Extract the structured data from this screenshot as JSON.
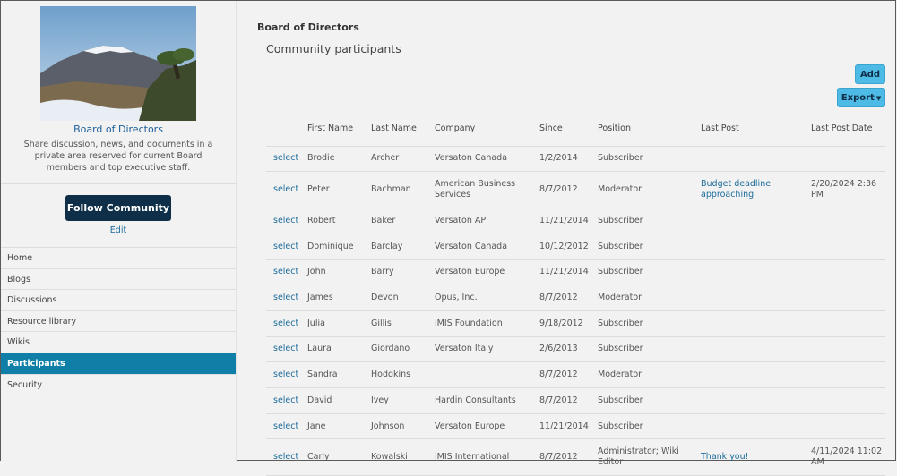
{
  "community": {
    "name": "Board of Directors",
    "description": "Share discussion, news, and documents in a private area reserved for current Board members and top executive staff.",
    "follow_label": "Follow Community",
    "edit_label": "Edit"
  },
  "nav": {
    "items": [
      {
        "label": "Home"
      },
      {
        "label": "Blogs"
      },
      {
        "label": "Discussions"
      },
      {
        "label": "Resource library"
      },
      {
        "label": "Wikis"
      },
      {
        "label": "Participants"
      },
      {
        "label": "Security"
      }
    ],
    "active": "Participants"
  },
  "main": {
    "page_title": "Board of Directors",
    "section_title": "Community participants",
    "add_label": "Add",
    "export_label": "Export"
  },
  "table": {
    "headers": {
      "first_name": "First Name",
      "last_name": "Last Name",
      "company": "Company",
      "since": "Since",
      "position": "Position",
      "last_post": "Last Post",
      "last_post_date": "Last Post Date"
    },
    "select_label": "select",
    "rows": [
      {
        "first": "Brodie",
        "last": "Archer",
        "company": "Versaton Canada",
        "since": "1/2/2014",
        "position": "Subscriber",
        "last_post": "",
        "last_post_date": ""
      },
      {
        "first": "Peter",
        "last": "Bachman",
        "company": "American Business Services",
        "since": "8/7/2012",
        "position": "Moderator",
        "last_post": "Budget deadline approaching",
        "last_post_date": "2/20/2024 2:36 PM"
      },
      {
        "first": "Robert",
        "last": "Baker",
        "company": "Versaton AP",
        "since": "11/21/2014",
        "position": "Subscriber",
        "last_post": "",
        "last_post_date": ""
      },
      {
        "first": "Dominique",
        "last": "Barclay",
        "company": "Versaton Canada",
        "since": "10/12/2012",
        "position": "Subscriber",
        "last_post": "",
        "last_post_date": ""
      },
      {
        "first": "John",
        "last": "Barry",
        "company": "Versaton Europe",
        "since": "11/21/2014",
        "position": "Subscriber",
        "last_post": "",
        "last_post_date": ""
      },
      {
        "first": "James",
        "last": "Devon",
        "company": "Opus, Inc.",
        "since": "8/7/2012",
        "position": "Moderator",
        "last_post": "",
        "last_post_date": ""
      },
      {
        "first": "Julia",
        "last": "Gillis",
        "company": "iMIS Foundation",
        "since": "9/18/2012",
        "position": "Subscriber",
        "last_post": "",
        "last_post_date": ""
      },
      {
        "first": "Laura",
        "last": "Giordano",
        "company": "Versaton Italy",
        "since": "2/6/2013",
        "position": "Subscriber",
        "last_post": "",
        "last_post_date": ""
      },
      {
        "first": "Sandra",
        "last": "Hodgkins",
        "company": "",
        "since": "8/7/2012",
        "position": "Moderator",
        "last_post": "",
        "last_post_date": ""
      },
      {
        "first": "David",
        "last": "Ivey",
        "company": "Hardin Consultants",
        "since": "8/7/2012",
        "position": "Subscriber",
        "last_post": "",
        "last_post_date": ""
      },
      {
        "first": "Jane",
        "last": "Johnson",
        "company": "Versaton Europe",
        "since": "11/21/2014",
        "position": "Subscriber",
        "last_post": "",
        "last_post_date": ""
      },
      {
        "first": "Carly",
        "last": "Kowalski",
        "company": "iMIS International",
        "since": "8/7/2012",
        "position": "Administrator; Wiki Editor",
        "last_post": "Thank you!",
        "last_post_date": "4/11/2024 11:02 AM"
      }
    ]
  }
}
